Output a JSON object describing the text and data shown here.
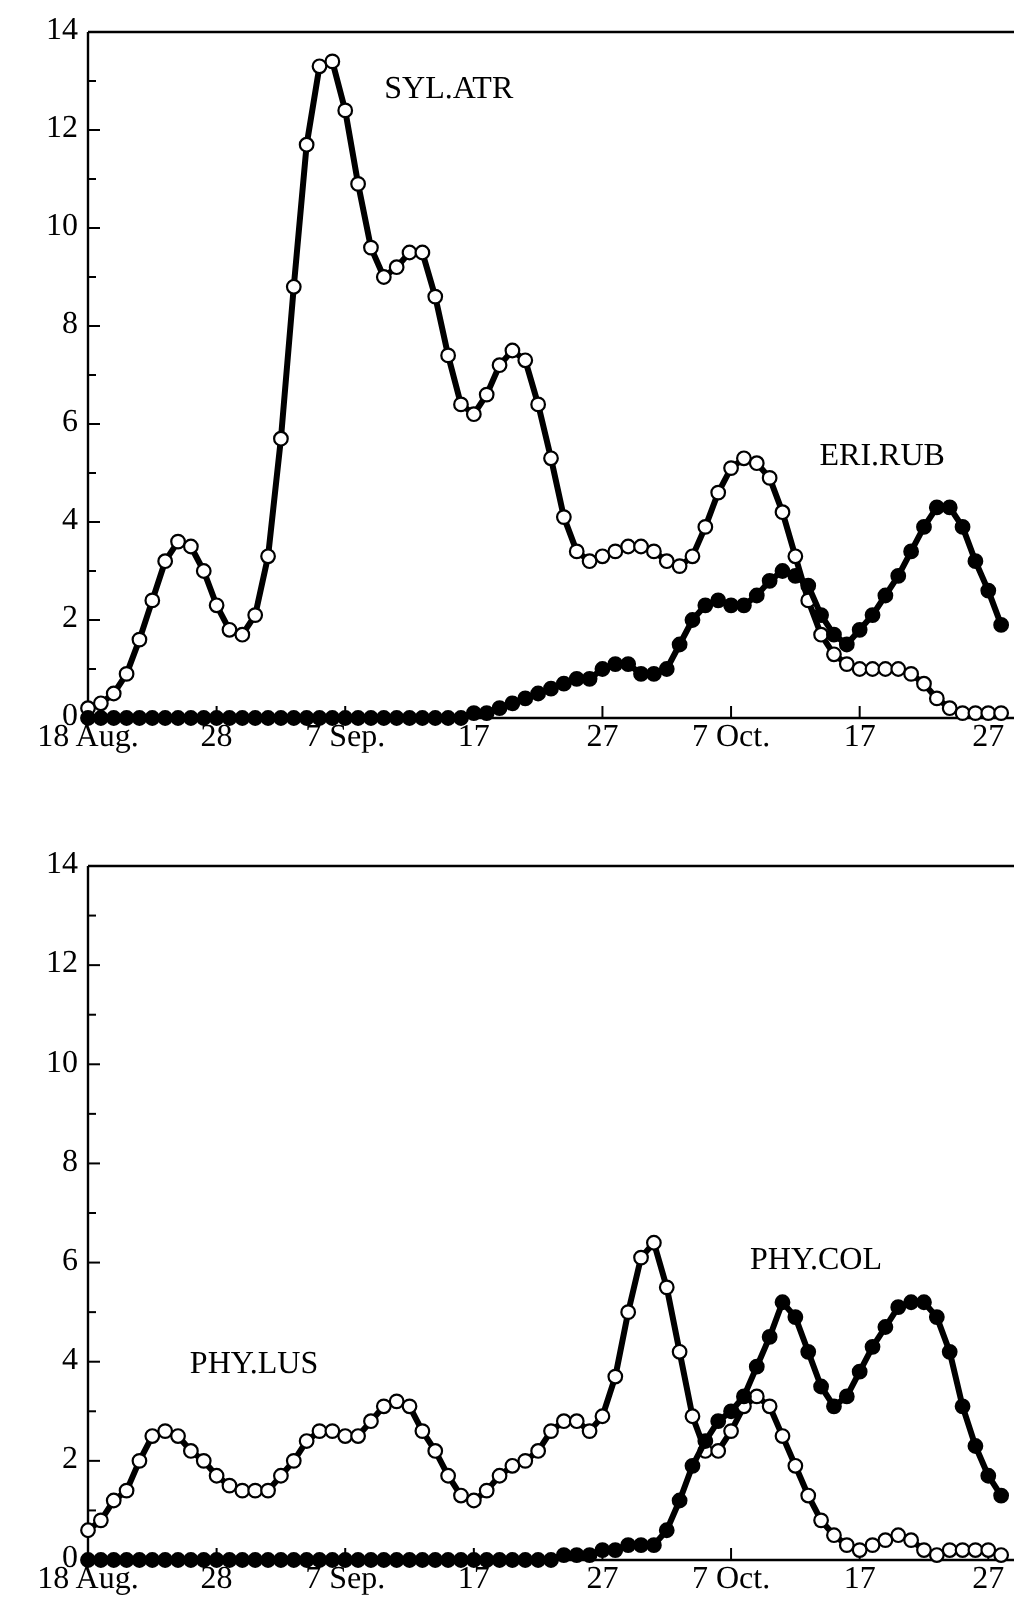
{
  "chart_data": [
    {
      "type": "line",
      "marker": "circle",
      "line_style": "solid",
      "grid": false,
      "x": [
        "--08-18",
        "--08-19",
        "--08-20",
        "--08-21",
        "--08-22",
        "--08-23",
        "--08-24",
        "--08-25",
        "--08-26",
        "--08-27",
        "--08-28",
        "--08-29",
        "--08-30",
        "--08-31",
        "--09-01",
        "--09-02",
        "--09-03",
        "--09-04",
        "--09-05",
        "--09-06",
        "--09-07",
        "--09-08",
        "--09-09",
        "--09-10",
        "--09-11",
        "--09-12",
        "--09-13",
        "--09-14",
        "--09-15",
        "--09-16",
        "--09-17",
        "--09-18",
        "--09-19",
        "--09-20",
        "--09-21",
        "--09-22",
        "--09-23",
        "--09-24",
        "--09-25",
        "--09-26",
        "--09-27",
        "--09-28",
        "--09-29",
        "--09-30",
        "--10-01",
        "--10-02",
        "--10-03",
        "--10-04",
        "--10-05",
        "--10-06",
        "--10-07",
        "--10-08",
        "--10-09",
        "--10-10",
        "--10-11",
        "--10-12",
        "--10-13",
        "--10-14",
        "--10-15",
        "--10-16",
        "--10-17",
        "--10-18",
        "--10-19",
        "--10-20",
        "--10-21",
        "--10-22",
        "--10-23",
        "--10-24",
        "--10-25",
        "--10-26",
        "--10-27",
        "--10-28"
      ],
      "xlim": [
        "--08-18",
        "--10-29"
      ],
      "xticks": [
        {
          "value": "--08-18",
          "label": "18 Aug."
        },
        {
          "value": "--08-28",
          "label": "28"
        },
        {
          "value": "--09-07",
          "label": "7 Sep."
        },
        {
          "value": "--09-17",
          "label": "17"
        },
        {
          "value": "--09-27",
          "label": "27"
        },
        {
          "value": "--10-07",
          "label": "7 Oct."
        },
        {
          "value": "--10-17",
          "label": "17"
        },
        {
          "value": "--10-27",
          "label": "27"
        }
      ],
      "ylim": [
        0,
        14
      ],
      "yticks": [
        0,
        {
          "value": 1,
          "label": null
        },
        2,
        {
          "value": 3,
          "label": null
        },
        4,
        {
          "value": 5,
          "label": null
        },
        6,
        {
          "value": 7,
          "label": null
        },
        8,
        {
          "value": 9,
          "label": null
        },
        10,
        {
          "value": 11,
          "label": null
        },
        12,
        {
          "value": 13,
          "label": null
        },
        14
      ],
      "series": [
        {
          "name": "SYL.ATR",
          "color": "#000000",
          "values": [
            0.2,
            0.3,
            0.5,
            0.9,
            1.6,
            2.4,
            3.2,
            3.6,
            3.5,
            3.0,
            2.3,
            1.8,
            1.7,
            2.1,
            3.3,
            5.7,
            8.8,
            11.7,
            13.3,
            13.4,
            12.4,
            10.9,
            9.6,
            9.0,
            9.2,
            9.5,
            9.5,
            8.6,
            7.4,
            6.4,
            6.2,
            6.6,
            7.2,
            7.5,
            7.3,
            6.4,
            5.3,
            4.1,
            3.4,
            3.2,
            3.3,
            3.4,
            3.5,
            3.5,
            3.4,
            3.2,
            3.1,
            3.3,
            3.9,
            4.6,
            5.1,
            5.3,
            5.2,
            4.9,
            4.2,
            3.3,
            2.4,
            1.7,
            1.3,
            1.1,
            1.0,
            1.0,
            1.0,
            1.0,
            0.9,
            0.7,
            0.4,
            0.2,
            0.1,
            0.1,
            0.1,
            0.1
          ]
        },
        {
          "name": "ERI.RUB",
          "color": "#000000",
          "values": [
            0,
            0,
            0,
            0,
            0,
            0,
            0,
            0,
            0,
            0,
            0,
            0,
            0,
            0,
            0,
            0,
            0,
            0,
            0,
            0,
            0,
            0,
            0,
            0,
            0,
            0,
            0,
            0,
            0,
            0,
            0.1,
            0.1,
            0.2,
            0.3,
            0.4,
            0.5,
            0.6,
            0.7,
            0.8,
            0.8,
            1.0,
            1.1,
            1.1,
            0.9,
            0.9,
            1.0,
            1.5,
            2.0,
            2.3,
            2.4,
            2.3,
            2.3,
            2.5,
            2.8,
            3.0,
            2.9,
            2.7,
            2.1,
            1.7,
            1.5,
            1.8,
            2.1,
            2.5,
            2.9,
            3.4,
            3.9,
            4.3,
            4.3,
            3.9,
            3.2,
            2.6,
            1.9
          ]
        }
      ]
    },
    {
      "type": "line",
      "marker": "circle",
      "line_style": "solid",
      "grid": false,
      "x": [
        "--08-18",
        "--08-19",
        "--08-20",
        "--08-21",
        "--08-22",
        "--08-23",
        "--08-24",
        "--08-25",
        "--08-26",
        "--08-27",
        "--08-28",
        "--08-29",
        "--08-30",
        "--08-31",
        "--09-01",
        "--09-02",
        "--09-03",
        "--09-04",
        "--09-05",
        "--09-06",
        "--09-07",
        "--09-08",
        "--09-09",
        "--09-10",
        "--09-11",
        "--09-12",
        "--09-13",
        "--09-14",
        "--09-15",
        "--09-16",
        "--09-17",
        "--09-18",
        "--09-19",
        "--09-20",
        "--09-21",
        "--09-22",
        "--09-23",
        "--09-24",
        "--09-25",
        "--09-26",
        "--09-27",
        "--09-28",
        "--09-29",
        "--09-30",
        "--10-01",
        "--10-02",
        "--10-03",
        "--10-04",
        "--10-05",
        "--10-06",
        "--10-07",
        "--10-08",
        "--10-09",
        "--10-10",
        "--10-11",
        "--10-12",
        "--10-13",
        "--10-14",
        "--10-15",
        "--10-16",
        "--10-17",
        "--10-18",
        "--10-19",
        "--10-20",
        "--10-21",
        "--10-22",
        "--10-23",
        "--10-24",
        "--10-25",
        "--10-26",
        "--10-27",
        "--10-28"
      ],
      "xlim": [
        "--08-18",
        "--10-29"
      ],
      "xticks": [
        {
          "value": "--08-18",
          "label": "18 Aug."
        },
        {
          "value": "--08-28",
          "label": "28"
        },
        {
          "value": "--09-07",
          "label": "7 Sep."
        },
        {
          "value": "--09-17",
          "label": "17"
        },
        {
          "value": "--09-27",
          "label": "27"
        },
        {
          "value": "--10-07",
          "label": "7 Oct."
        },
        {
          "value": "--10-17",
          "label": "17"
        },
        {
          "value": "--10-27",
          "label": "27"
        }
      ],
      "ylim": [
        0,
        14
      ],
      "yticks": [
        0,
        {
          "value": 1,
          "label": null
        },
        2,
        {
          "value": 3,
          "label": null
        },
        4,
        {
          "value": 5,
          "label": null
        },
        6,
        {
          "value": 7,
          "label": null
        },
        8,
        {
          "value": 9,
          "label": null
        },
        10,
        {
          "value": 11,
          "label": null
        },
        12,
        {
          "value": 13,
          "label": null
        },
        14
      ],
      "series": [
        {
          "name": "PHY.LUS",
          "color": "#000000",
          "values": [
            0.6,
            0.8,
            1.2,
            1.4,
            2.0,
            2.5,
            2.6,
            2.5,
            2.2,
            2.0,
            1.7,
            1.5,
            1.4,
            1.4,
            1.4,
            1.7,
            2.0,
            2.4,
            2.6,
            2.6,
            2.5,
            2.5,
            2.8,
            3.1,
            3.2,
            3.1,
            2.6,
            2.2,
            1.7,
            1.3,
            1.2,
            1.4,
            1.7,
            1.9,
            2.0,
            2.2,
            2.6,
            2.8,
            2.8,
            2.6,
            2.9,
            3.7,
            5.0,
            6.1,
            6.4,
            5.5,
            4.2,
            2.9,
            2.2,
            2.2,
            2.6,
            3.1,
            3.3,
            3.1,
            2.5,
            1.9,
            1.3,
            0.8,
            0.5,
            0.3,
            0.2,
            0.3,
            0.4,
            0.5,
            0.4,
            0.2,
            0.1,
            0.2,
            0.2,
            0.2,
            0.2,
            0.1
          ]
        },
        {
          "name": "PHY.COL",
          "color": "#000000",
          "values": [
            0,
            0,
            0,
            0,
            0,
            0,
            0,
            0,
            0,
            0,
            0,
            0,
            0,
            0,
            0,
            0,
            0,
            0,
            0,
            0,
            0,
            0,
            0,
            0,
            0,
            0,
            0,
            0,
            0,
            0,
            0,
            0,
            0,
            0,
            0,
            0,
            0,
            0.1,
            0.1,
            0.1,
            0.2,
            0.2,
            0.3,
            0.3,
            0.3,
            0.6,
            1.2,
            1.9,
            2.4,
            2.8,
            3.0,
            3.3,
            3.9,
            4.5,
            5.2,
            4.9,
            4.2,
            3.5,
            3.1,
            3.3,
            3.8,
            4.3,
            4.7,
            5.1,
            5.2,
            5.2,
            4.9,
            4.2,
            3.1,
            2.3,
            1.7,
            1.3
          ]
        }
      ]
    }
  ]
}
